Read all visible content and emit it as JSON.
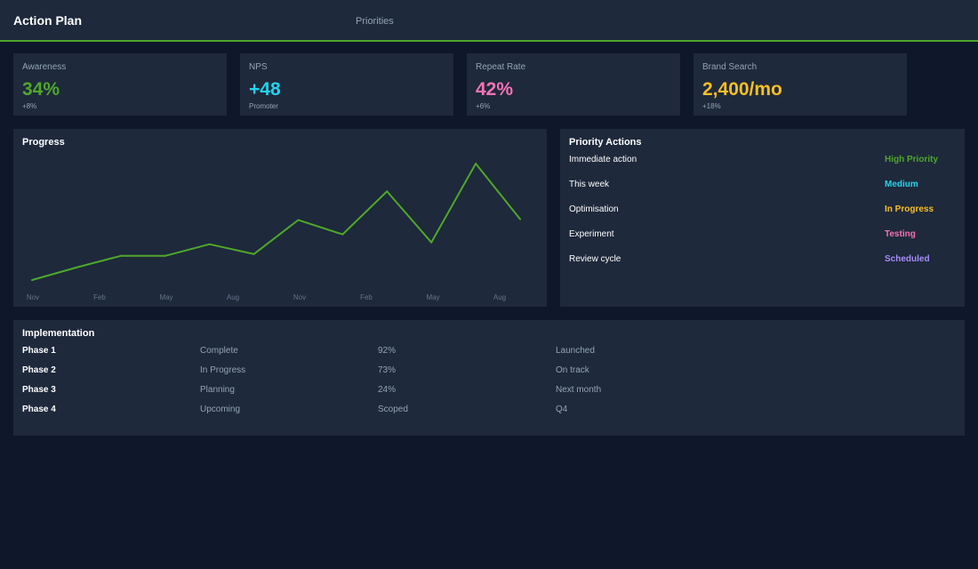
{
  "header": {
    "title": "Action Plan",
    "nav_priorities": "Priorities",
    "accent_color": "#4ea82a"
  },
  "kpis": [
    {
      "label": "Awareness",
      "value": "34%",
      "sub": "+8%",
      "color": "#4ea82a"
    },
    {
      "label": "NPS",
      "value": "+48",
      "sub": "Promoter",
      "color": "#22d3ee"
    },
    {
      "label": "Repeat Rate",
      "value": "42%",
      "sub": "+6%",
      "color": "#f472b6"
    },
    {
      "label": "Brand Search",
      "value": "2,400/mo",
      "sub": "+18%",
      "color": "#fbbf24"
    }
  ],
  "progress": {
    "title": "Progress"
  },
  "chart_data": {
    "type": "line",
    "title": "Progress",
    "x_tick_labels": [
      "Nov",
      "Feb",
      "May",
      "Aug",
      "Nov",
      "Feb",
      "May",
      "Aug"
    ],
    "series": [
      {
        "color": "#4ea82a",
        "values": [
          0,
          14,
          27,
          27,
          40,
          29,
          67,
          51,
          99,
          42,
          130,
          68
        ]
      }
    ],
    "ylim": [
      0,
      130
    ],
    "grid": false,
    "legend": "none"
  },
  "priority_actions": {
    "title": "Priority Actions",
    "items": [
      {
        "label": "Immediate action",
        "status": "High Priority",
        "color": "#4ea82a"
      },
      {
        "label": "This week",
        "status": "Medium",
        "color": "#22d3ee"
      },
      {
        "label": "Optimisation",
        "status": "In Progress",
        "color": "#fbbf24"
      },
      {
        "label": "Experiment",
        "status": "Testing",
        "color": "#f472b6"
      },
      {
        "label": "Review cycle",
        "status": "Scheduled",
        "color": "#a78bfa"
      }
    ]
  },
  "implementation": {
    "title": "Implementation",
    "rows": [
      {
        "phase": "Phase 1",
        "status": "Complete",
        "percent": "92%",
        "note": "Launched"
      },
      {
        "phase": "Phase 2",
        "status": "In Progress",
        "percent": "73%",
        "note": "On track"
      },
      {
        "phase": "Phase 3",
        "status": "Planning",
        "percent": "24%",
        "note": "Next month"
      },
      {
        "phase": "Phase 4",
        "status": "Upcoming",
        "percent": "Scoped",
        "note": "Q4"
      }
    ]
  }
}
